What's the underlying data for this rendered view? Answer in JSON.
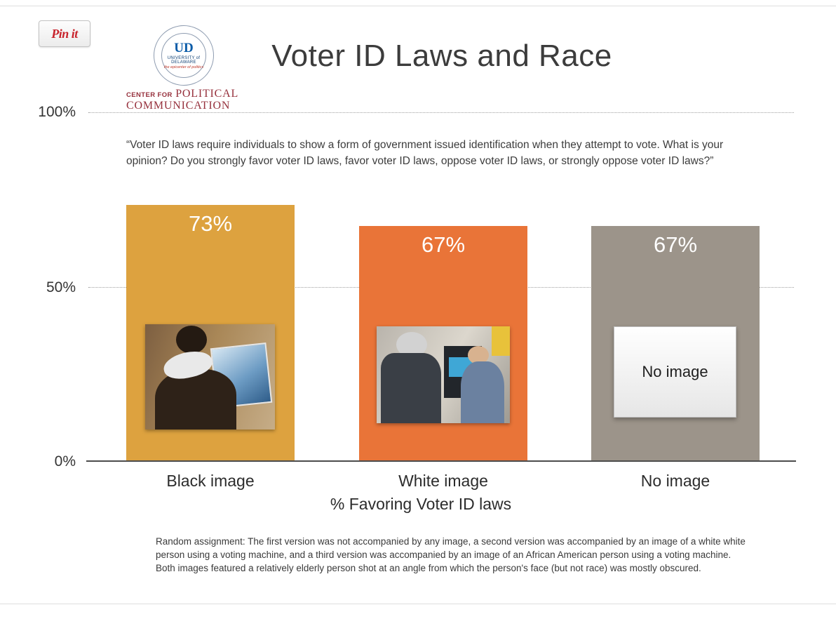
{
  "pin": {
    "label": "Pin it"
  },
  "logo": {
    "monogram": "UD",
    "university": "UNIVERSITY of DELAWARE",
    "epicenter": "the epicenter of politics",
    "center_prefix": "CENTER FOR",
    "center_word1": "POLITICAL",
    "center_word2": "COMMUNICATION"
  },
  "question": "“Voter ID laws require individuals to show a form of government issued identification when they attempt to vote. What is your opinion? Do you strongly favor voter ID laws, favor voter ID laws, oppose voter ID laws, or strongly oppose voter ID laws?”",
  "chart_data": {
    "type": "bar",
    "title": "Voter ID Laws and Race",
    "categories": [
      "Black image",
      "White image",
      "No image"
    ],
    "values": [
      73,
      67,
      67
    ],
    "value_labels": [
      "73%",
      "67%",
      "67%"
    ],
    "bar_colors": [
      "#dda23f",
      "#e97438",
      "#9c948a"
    ],
    "xlabel": "% Favoring Voter ID laws",
    "ylabel": "",
    "ylim": [
      0,
      100
    ],
    "yticks": {
      "top": "100%",
      "mid": "50%",
      "bottom": "0%"
    },
    "grid": "dotted horizontal lines at 50% and 100%",
    "legend": "none",
    "no_image_label": "No image"
  },
  "footnote": "Random assignment: The first version was not accompanied by any image, a second version was accompanied by an image of a white white person using a voting machine, and a third version was accompanied by an image of an African American person using a voting machine. Both images featured a relatively elderly person shot at an angle from which the person's face (but not race) was mostly obscured."
}
